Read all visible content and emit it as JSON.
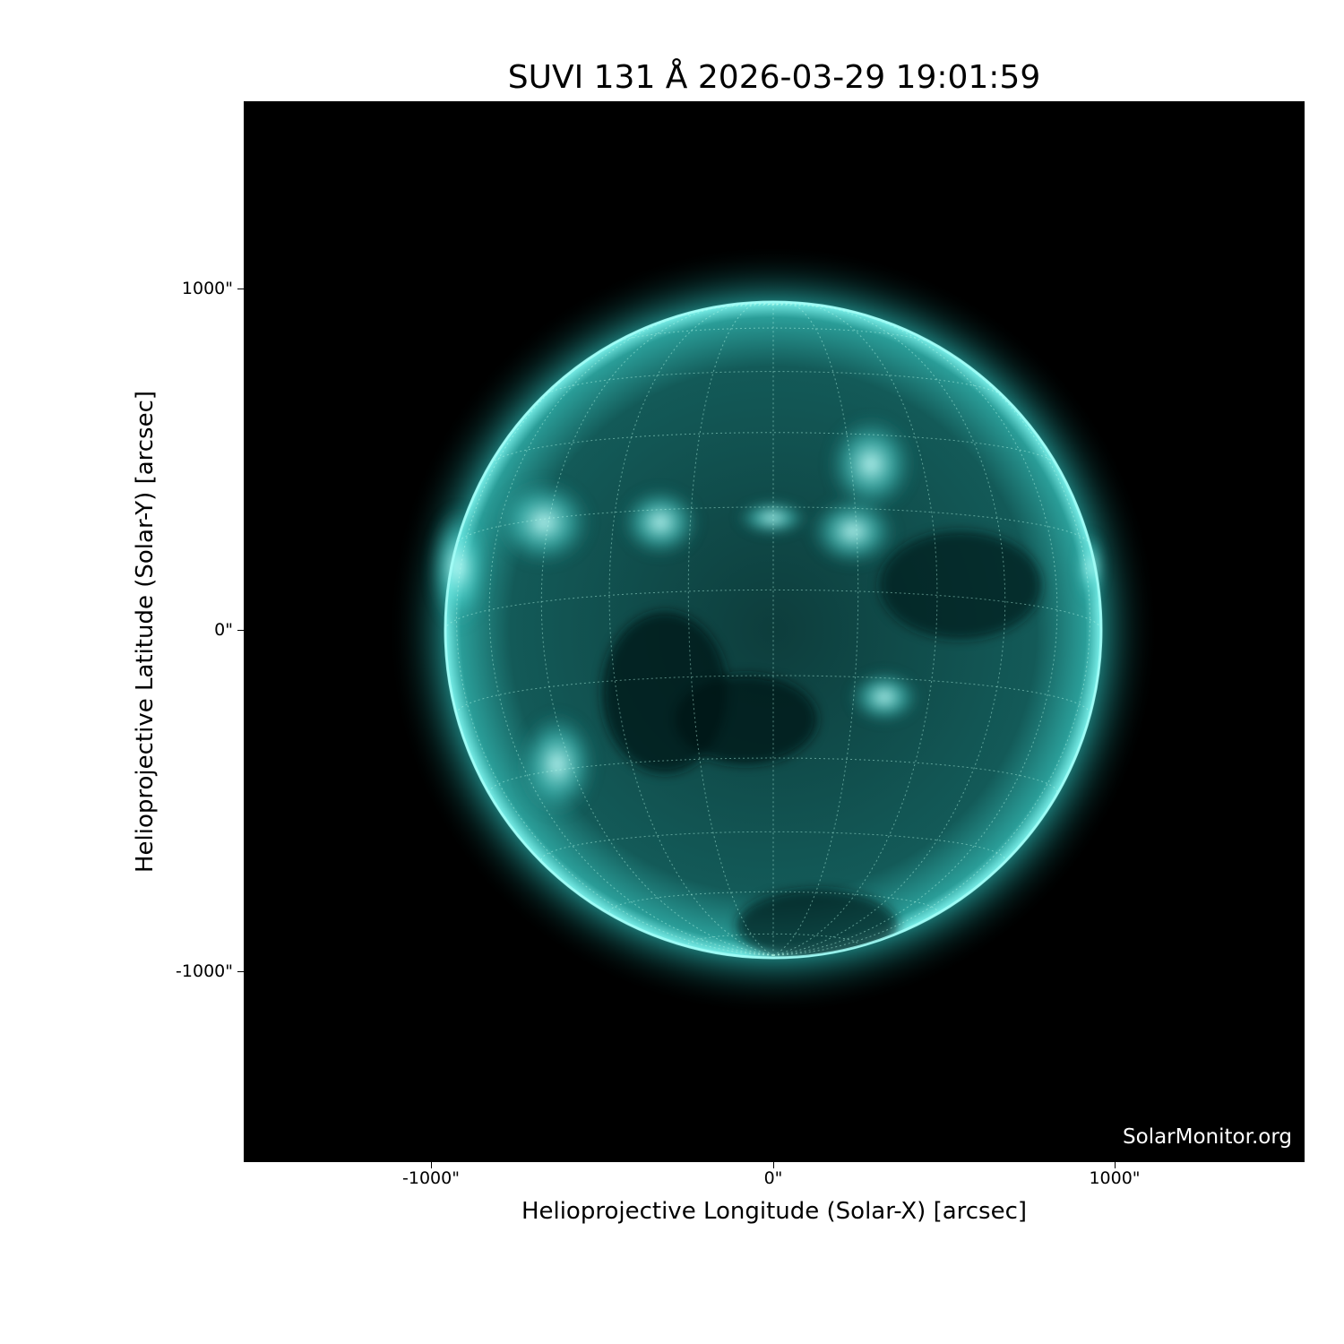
{
  "title": "SUVI 131 Å 2026-03-29 19:01:59",
  "credit": "SolarMonitor.org",
  "chart_data": {
    "type": "image",
    "title": "SUVI 131 Å 2026-03-29 19:01:59",
    "xlabel": "Helioprojective Longitude (Solar-X) [arcsec]",
    "ylabel": "Helioprojective Latitude (Solar-Y) [arcsec]",
    "xticks": [
      "-1000\"",
      "0\"",
      "1000\""
    ],
    "yticks": [
      "1000\"",
      "0\"",
      "-1000\""
    ],
    "xtick_values": [
      -1000,
      0,
      1000
    ],
    "ytick_values": [
      1000,
      0,
      -1000
    ],
    "xlim": [
      -1550,
      1550
    ],
    "ylim": [
      -1550,
      1550
    ],
    "grid": true,
    "colormap": "teal (SUVI 131)",
    "colors": {
      "disk": "#1a7f7f",
      "limb": "#6ff5ef",
      "background": "#000000"
    }
  }
}
